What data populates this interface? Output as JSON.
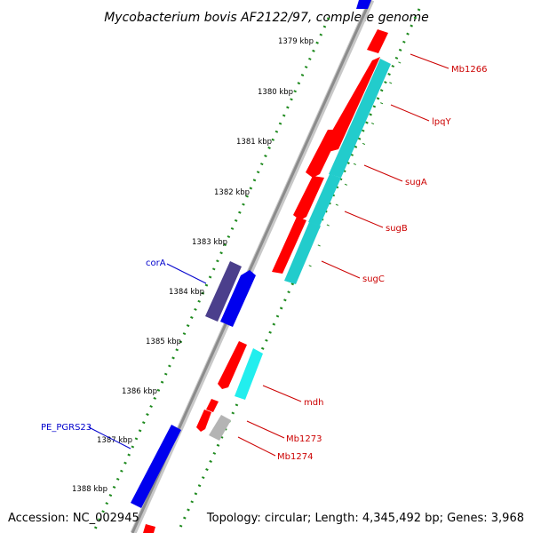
{
  "title": "Mycobacterium bovis AF2122/97, complete genome",
  "accession": "Accession: NC_002945",
  "summary": "Topology: circular; Length: 4,345,492 bp; Genes: 3,968",
  "colors": {
    "backbone": "#8c8c8c",
    "dots": "#1e8a1e",
    "red_feature": "#ff0000",
    "red_label": "#cc0000",
    "cyan_feature": "#22cccc",
    "blue_feature": "#0000ee",
    "purple_feature": "#4b3f8c",
    "grey_feature": "#b4b4b4",
    "blue_label": "#0000cc"
  },
  "ticks": [
    "1379 kbp",
    "1380 kbp",
    "1381 kbp",
    "1382 kbp",
    "1383 kbp",
    "1384 kbp",
    "1385 kbp",
    "1386 kbp",
    "1387 kbp",
    "1388 kbp"
  ],
  "gene_labels": [
    "Mb1266",
    "lpqY",
    "sugA",
    "sugB",
    "sugC",
    "mdh",
    "Mb1273",
    "Mb1274",
    "corA",
    "PE_PGRS23"
  ]
}
